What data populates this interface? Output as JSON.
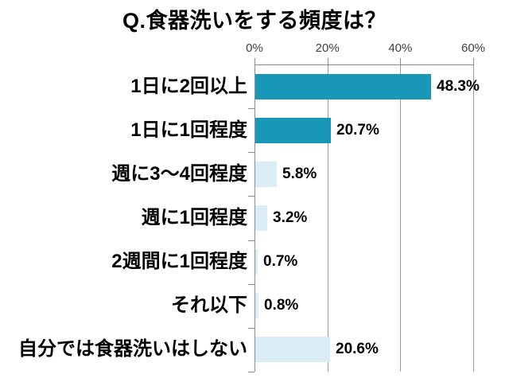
{
  "title": "Q.食器洗いをする頻度は？",
  "chart_data": {
    "type": "bar",
    "orientation": "horizontal",
    "title": "Q.食器洗いをする頻度は？",
    "categories": [
      "1日に2回以上",
      "1日に1回程度",
      "週に3～4回程度",
      "週に1回程度",
      "2週間に1回程度",
      "それ以下",
      "自分では食器洗いはしない"
    ],
    "values": [
      48.3,
      20.7,
      5.8,
      3.2,
      0.7,
      0.8,
      20.6
    ],
    "value_labels": [
      "48.3%",
      "20.7%",
      "5.8%",
      "3.2%",
      "0.7%",
      "0.8%",
      "20.6%"
    ],
    "bar_colors": [
      "#1897B6",
      "#1897B6",
      "#DAEDF5",
      "#DAEDF5",
      "#DAEDF5",
      "#DAEDF5",
      "#DAEDF5"
    ],
    "x_axis": {
      "range": [
        0,
        60
      ],
      "ticks": [
        {
          "value": 0,
          "label": "0%"
        },
        {
          "value": 20,
          "label": "20%"
        },
        {
          "value": 40,
          "label": "40%"
        },
        {
          "value": 60,
          "label": "60%"
        }
      ]
    },
    "grid": true,
    "legend": false,
    "axis_position": "top"
  },
  "colors": {
    "bar_primary": "#1897B6",
    "bar_secondary": "#DAEDF5",
    "axis": "#8C8C8C",
    "tick_label": "#404040",
    "text": "#000000",
    "background": "#FFFFFF"
  }
}
